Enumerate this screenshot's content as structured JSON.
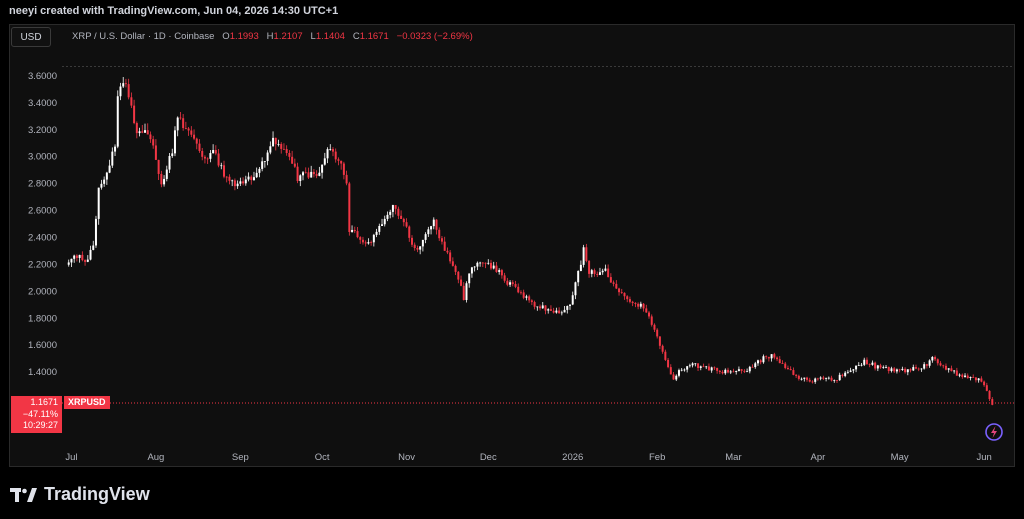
{
  "header": {
    "created_text": "neeyi created with TradingView.com, Jun 04, 2026 14:30 UTC+1"
  },
  "toolbar": {
    "currency_button": "USD"
  },
  "legend": {
    "symbol": "XRP / U.S. Dollar · 1D · Coinbase",
    "open_label": "O",
    "open_value": "1.1993",
    "high_label": "H",
    "high_value": "1.2107",
    "low_label": "L",
    "low_value": "1.1404",
    "close_label": "C",
    "close_value": "1.1671",
    "change": "−0.0323 (−2.69%)"
  },
  "price_badge": {
    "price": "1.1671",
    "change_pct": "−47.11%",
    "countdown": "10:29:27",
    "symbol": "XRPUSD"
  },
  "brand": {
    "name": "TradingView"
  },
  "colors": {
    "up": "#ffffff",
    "down": "#f23645",
    "background": "#0f0f0f",
    "text": "#b2b5be"
  },
  "icons": [
    "tradingview-logo-icon",
    "snapshot-icon"
  ],
  "chart_data": {
    "type": "candlestick",
    "title": "XRP / U.S. Dollar · 1D · Coinbase",
    "ylim": [
      1.1,
      3.7
    ],
    "y_ticks": [
      "3.6000",
      "3.4000",
      "3.2000",
      "3.0000",
      "2.8000",
      "2.6000",
      "2.4000",
      "2.2000",
      "2.0000",
      "1.8000",
      "1.6000",
      "1.4000"
    ],
    "x_ticks": [
      {
        "label": "Jul",
        "date": "2025-07-01"
      },
      {
        "label": "Aug",
        "date": "2025-08-01"
      },
      {
        "label": "Sep",
        "date": "2025-09-01"
      },
      {
        "label": "Oct",
        "date": "2025-10-01"
      },
      {
        "label": "Nov",
        "date": "2025-11-01"
      },
      {
        "label": "Dec",
        "date": "2025-12-01"
      },
      {
        "label": "2026",
        "date": "2026-01-01"
      },
      {
        "label": "Feb",
        "date": "2026-02-01"
      },
      {
        "label": "Mar",
        "date": "2026-03-01"
      },
      {
        "label": "Apr",
        "date": "2026-04-01"
      },
      {
        "label": "May",
        "date": "2026-05-01"
      },
      {
        "label": "Jun",
        "date": "2026-06-01"
      }
    ],
    "x_range": [
      "2025-06-29",
      "2026-06-05"
    ],
    "close_path": [
      [
        "2025-06-29",
        2.2
      ],
      [
        "2025-07-03",
        2.25
      ],
      [
        "2025-07-07",
        2.22
      ],
      [
        "2025-07-09",
        2.35
      ],
      [
        "2025-07-11",
        2.75
      ],
      [
        "2025-07-13",
        2.85
      ],
      [
        "2025-07-15",
        2.95
      ],
      [
        "2025-07-17",
        3.1
      ],
      [
        "2025-07-18",
        3.45
      ],
      [
        "2025-07-21",
        3.55
      ],
      [
        "2025-07-23",
        3.4
      ],
      [
        "2025-07-25",
        3.15
      ],
      [
        "2025-07-28",
        3.2
      ],
      [
        "2025-07-31",
        3.05
      ],
      [
        "2025-08-03",
        2.8
      ],
      [
        "2025-08-07",
        3.05
      ],
      [
        "2025-08-09",
        3.3
      ],
      [
        "2025-08-12",
        3.2
      ],
      [
        "2025-08-15",
        3.1
      ],
      [
        "2025-08-18",
        2.98
      ],
      [
        "2025-08-22",
        3.05
      ],
      [
        "2025-08-26",
        2.88
      ],
      [
        "2025-08-30",
        2.8
      ],
      [
        "2025-09-04",
        2.82
      ],
      [
        "2025-09-09",
        2.95
      ],
      [
        "2025-09-13",
        3.1
      ],
      [
        "2025-09-18",
        3.05
      ],
      [
        "2025-09-22",
        2.85
      ],
      [
        "2025-09-26",
        2.85
      ],
      [
        "2025-09-30",
        2.9
      ],
      [
        "2025-10-03",
        3.05
      ],
      [
        "2025-10-07",
        2.98
      ],
      [
        "2025-10-10",
        2.78
      ],
      [
        "2025-10-11",
        2.45
      ],
      [
        "2025-10-15",
        2.4
      ],
      [
        "2025-10-19",
        2.35
      ],
      [
        "2025-10-24",
        2.55
      ],
      [
        "2025-10-27",
        2.65
      ],
      [
        "2025-10-31",
        2.5
      ],
      [
        "2025-11-04",
        2.3
      ],
      [
        "2025-11-08",
        2.4
      ],
      [
        "2025-11-11",
        2.5
      ],
      [
        "2025-11-15",
        2.3
      ],
      [
        "2025-11-19",
        2.15
      ],
      [
        "2025-11-22",
        1.95
      ],
      [
        "2025-11-25",
        2.2
      ],
      [
        "2025-11-30",
        2.2
      ],
      [
        "2025-12-04",
        2.15
      ],
      [
        "2025-12-09",
        2.05
      ],
      [
        "2025-12-14",
        1.95
      ],
      [
        "2025-12-19",
        1.88
      ],
      [
        "2025-12-24",
        1.86
      ],
      [
        "2025-12-28",
        1.85
      ],
      [
        "2025-12-31",
        1.88
      ],
      [
        "2026-01-02",
        2.05
      ],
      [
        "2026-01-05",
        2.3
      ],
      [
        "2026-01-07",
        2.15
      ],
      [
        "2026-01-10",
        2.1
      ],
      [
        "2026-01-13",
        2.15
      ],
      [
        "2026-01-16",
        2.05
      ],
      [
        "2026-01-20",
        1.95
      ],
      [
        "2026-01-24",
        1.9
      ],
      [
        "2026-01-27",
        1.88
      ],
      [
        "2026-01-30",
        1.75
      ],
      [
        "2026-02-03",
        1.55
      ],
      [
        "2026-02-05",
        1.42
      ],
      [
        "2026-02-07",
        1.35
      ],
      [
        "2026-02-10",
        1.42
      ],
      [
        "2026-02-15",
        1.45
      ],
      [
        "2026-02-20",
        1.42
      ],
      [
        "2026-02-25",
        1.4
      ],
      [
        "2026-03-02",
        1.4
      ],
      [
        "2026-03-07",
        1.42
      ],
      [
        "2026-03-12",
        1.5
      ],
      [
        "2026-03-16",
        1.52
      ],
      [
        "2026-03-20",
        1.42
      ],
      [
        "2026-03-25",
        1.36
      ],
      [
        "2026-03-30",
        1.33
      ],
      [
        "2026-04-03",
        1.35
      ],
      [
        "2026-04-08",
        1.35
      ],
      [
        "2026-04-13",
        1.42
      ],
      [
        "2026-04-18",
        1.48
      ],
      [
        "2026-04-22",
        1.44
      ],
      [
        "2026-04-27",
        1.42
      ],
      [
        "2026-05-01",
        1.4
      ],
      [
        "2026-05-06",
        1.42
      ],
      [
        "2026-05-10",
        1.44
      ],
      [
        "2026-05-13",
        1.5
      ],
      [
        "2026-05-16",
        1.45
      ],
      [
        "2026-05-20",
        1.4
      ],
      [
        "2026-05-25",
        1.36
      ],
      [
        "2026-05-29",
        1.35
      ],
      [
        "2026-06-01",
        1.3
      ],
      [
        "2026-06-03",
        1.2
      ],
      [
        "2026-06-04",
        1.1671
      ]
    ],
    "last_price": 1.1671
  }
}
